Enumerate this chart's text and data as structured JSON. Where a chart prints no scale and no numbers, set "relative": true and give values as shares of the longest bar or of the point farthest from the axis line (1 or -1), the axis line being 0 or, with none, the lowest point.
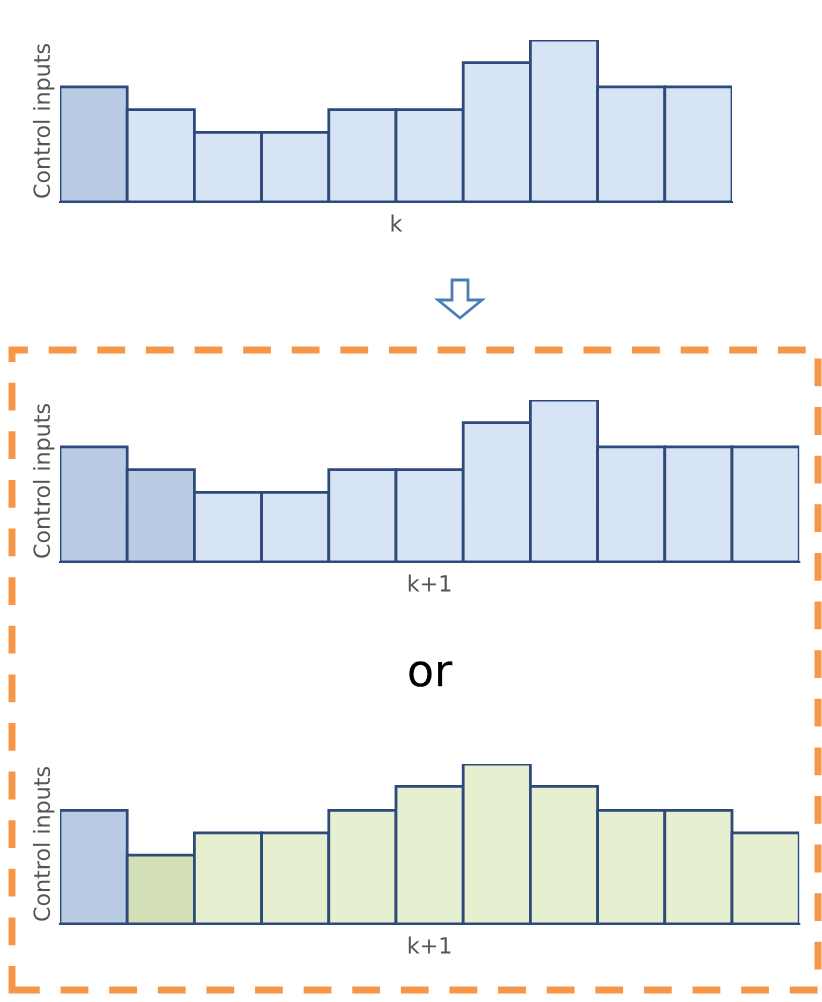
{
  "chart_data": [
    {
      "type": "bar",
      "relative": true,
      "xlabel": "k",
      "ylabel": "Control inputs",
      "categories": [
        null,
        null,
        null,
        null,
        null,
        null,
        null,
        null,
        null,
        null
      ],
      "values": [
        0.71,
        0.57,
        0.43,
        0.43,
        0.57,
        0.57,
        0.86,
        1,
        0.71,
        0.71
      ],
      "colors": [
        "#b9cce4",
        "#d6e4f5",
        "#d6e4f5",
        "#d6e4f5",
        "#d6e4f5",
        "#d6e4f5",
        "#d6e4f5",
        "#d6e4f5",
        "#d6e4f5",
        "#d6e4f5"
      ]
    },
    {
      "type": "bar",
      "relative": true,
      "xlabel": "k+1",
      "ylabel": "Control inputs",
      "categories": [
        null,
        null,
        null,
        null,
        null,
        null,
        null,
        null,
        null,
        null,
        null
      ],
      "values": [
        0.71,
        0.57,
        0.43,
        0.43,
        0.57,
        0.57,
        0.86,
        1,
        0.71,
        0.71,
        0.71
      ],
      "colors": [
        "#b9cce4",
        "#b9cce4",
        "#d6e4f5",
        "#d6e4f5",
        "#d6e4f5",
        "#d6e4f5",
        "#d6e4f5",
        "#d6e4f5",
        "#d6e4f5",
        "#d6e4f5",
        "#d6e4f5"
      ]
    },
    {
      "type": "bar",
      "relative": true,
      "title": "or",
      "xlabel": "k+1",
      "ylabel": "Control inputs",
      "categories": [
        null,
        null,
        null,
        null,
        null,
        null,
        null,
        null,
        null,
        null,
        null
      ],
      "values": [
        0.71,
        0.43,
        0.57,
        0.57,
        0.71,
        0.86,
        1,
        0.86,
        0.71,
        0.71,
        0.57
      ],
      "colors": [
        "#b9cce4",
        "#d3e0b8",
        "#e6efcf",
        "#e6efcf",
        "#e6efcf",
        "#e6efcf",
        "#e6efcf",
        "#e6efcf",
        "#e6efcf",
        "#e6efcf",
        "#e6efcf"
      ]
    }
  ]
}
